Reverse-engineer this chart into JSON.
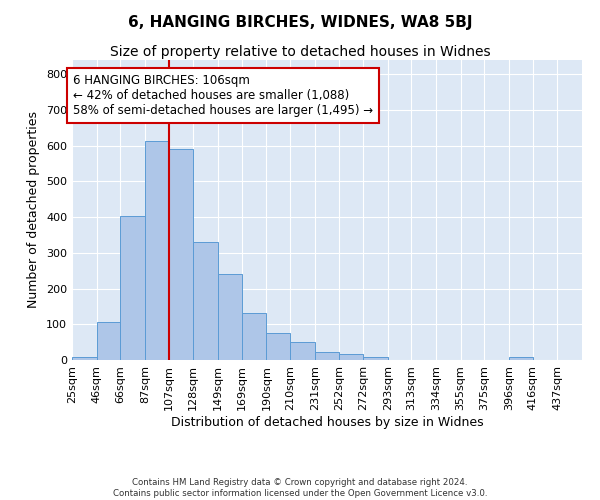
{
  "title": "6, HANGING BIRCHES, WIDNES, WA8 5BJ",
  "subtitle": "Size of property relative to detached houses in Widnes",
  "xlabel": "Distribution of detached houses by size in Widnes",
  "ylabel": "Number of detached properties",
  "footer": "Contains HM Land Registry data © Crown copyright and database right 2024.\nContains public sector information licensed under the Open Government Licence v3.0.",
  "bins": [
    25,
    46,
    66,
    87,
    107,
    128,
    149,
    169,
    190,
    210,
    231,
    252,
    272,
    293,
    313,
    334,
    355,
    375,
    396,
    416,
    437
  ],
  "bar_heights": [
    8,
    107,
    403,
    613,
    592,
    330,
    242,
    133,
    77,
    50,
    22,
    16,
    8,
    0,
    0,
    0,
    0,
    0,
    8,
    0,
    0
  ],
  "bar_color": "#aec6e8",
  "bar_edgecolor": "#5b9bd5",
  "property_bin_index": 4,
  "vline_color": "#cc0000",
  "annotation_text": "6 HANGING BIRCHES: 106sqm\n← 42% of detached houses are smaller (1,088)\n58% of semi-detached houses are larger (1,495) →",
  "annotation_box_color": "#ffffff",
  "annotation_border_color": "#cc0000",
  "ylim": [
    0,
    840
  ],
  "yticks": [
    0,
    100,
    200,
    300,
    400,
    500,
    600,
    700,
    800
  ],
  "bg_color": "#dde8f5",
  "title_fontsize": 11,
  "subtitle_fontsize": 10,
  "xlabel_fontsize": 9,
  "ylabel_fontsize": 9,
  "annotation_fontsize": 8.5,
  "tick_fontsize": 8
}
